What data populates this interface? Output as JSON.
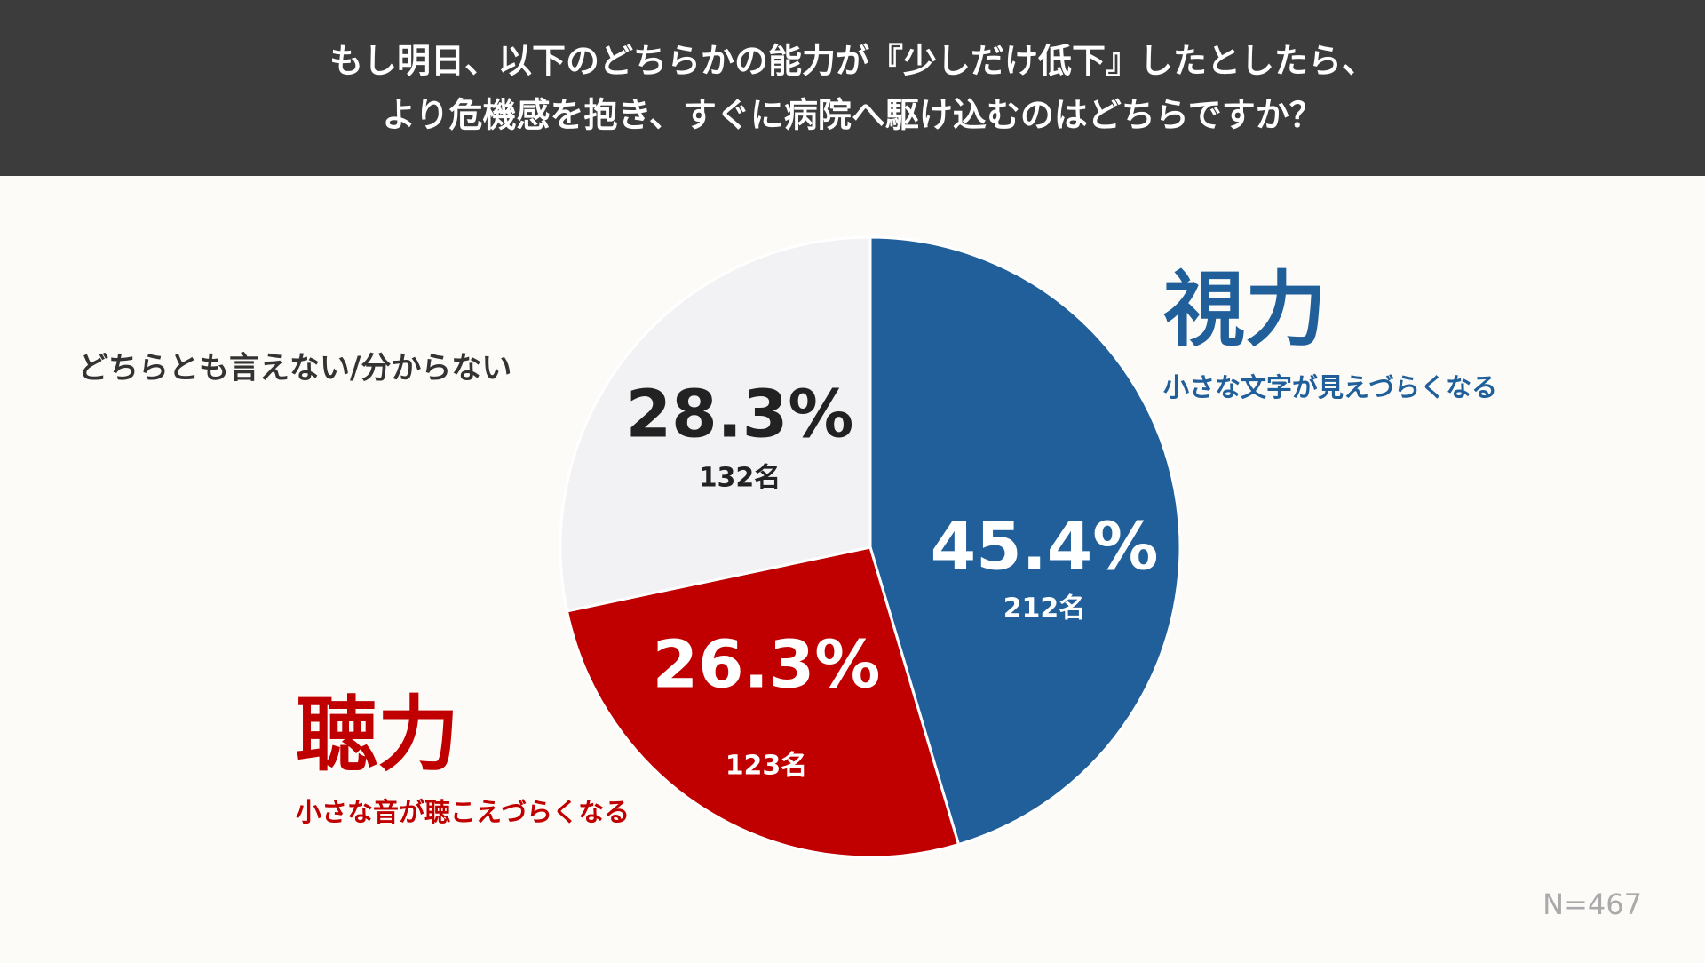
{
  "chart_data": {
    "type": "pie",
    "title": [
      "もし明日、以下のどちらかの能力が『少しだけ低下』したとしたら、",
      "より危機感を抱き、すぐに病院へ駆け込むのはどちらですか？"
    ],
    "categories": [
      "視力",
      "聴力",
      "どちらとも言えない/分からない"
    ],
    "descriptions": [
      "小さな文字が見えづらくなる",
      "小さな音が聴こえづらくなる",
      null
    ],
    "values": [
      45.4,
      26.3,
      28.3
    ],
    "value_labels": [
      "45.4%",
      "26.3%",
      "28.3%"
    ],
    "count_labels": [
      "212名",
      "123名",
      "132名"
    ],
    "colors": [
      "#215f9a",
      "#c00000",
      "#f2f2f4"
    ],
    "note": "N=467"
  }
}
